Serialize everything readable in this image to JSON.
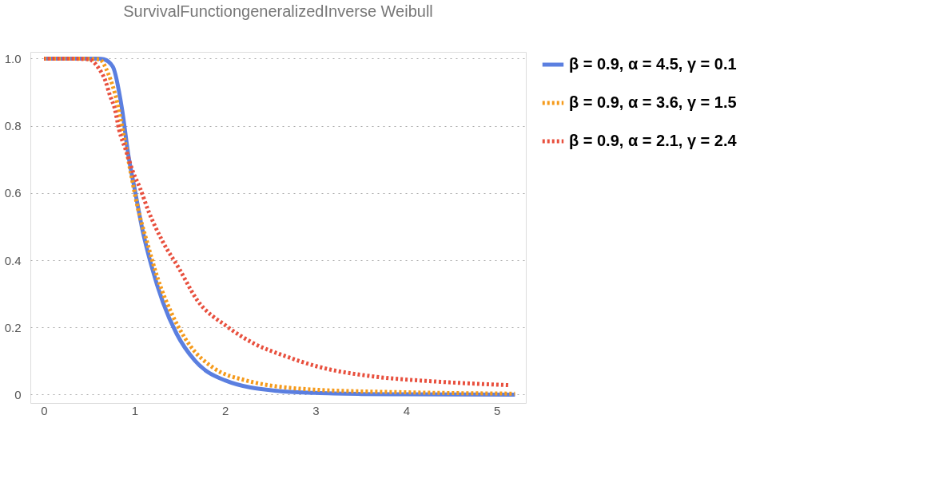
{
  "chart_data": {
    "type": "line",
    "title": "SurvivalFunctiongeneralizedInverse Weibull",
    "xlim": [
      -0.15,
      5.32
    ],
    "ylim": [
      -0.025,
      1.02
    ],
    "xticks": [
      0,
      1,
      2,
      3,
      4,
      5
    ],
    "yticks": [
      0,
      {
        "value": 0.2,
        "label": "0.2"
      },
      {
        "value": 0.4,
        "label": "0.4"
      },
      {
        "value": 0.6,
        "label": "0.6"
      },
      {
        "value": 0.8,
        "label": "0.8"
      },
      {
        "value": 1,
        "label": "1.0"
      }
    ],
    "grid": "y",
    "legend": "right",
    "series": [
      {
        "name": "β = 0.9,  α = 4.5,  γ = 0.1",
        "color": "#5b7fe0",
        "line_style": "solid",
        "x": [
          0,
          0.3,
          0.6,
          0.66,
          0.76,
          0.86,
          0.934,
          1.01,
          1.086,
          1.187,
          1.313,
          1.465,
          1.667,
          1.995,
          2.576,
          3.0,
          3.5,
          4.0,
          5.2
        ],
        "values": [
          1,
          1,
          1,
          0.998,
          0.976,
          0.853,
          0.709,
          0.6,
          0.492,
          0.383,
          0.275,
          0.181,
          0.101,
          0.043,
          0.011,
          0.005,
          0.002,
          0.001,
          0
        ]
      },
      {
        "name": "β = 0.9,  α = 3.6,  γ = 1.5",
        "color": "#f59a1b",
        "line_style": "dotted",
        "x": [
          0,
          0.3,
          0.61,
          0.71,
          0.81,
          0.884,
          0.96,
          1.035,
          1.136,
          1.263,
          1.414,
          1.616,
          1.869,
          2.22,
          2.98,
          3.99,
          5.2
        ],
        "values": [
          1,
          1,
          0.998,
          0.955,
          0.868,
          0.767,
          0.658,
          0.557,
          0.456,
          0.34,
          0.239,
          0.145,
          0.08,
          0.043,
          0.015,
          0.007,
          0.003
        ]
      },
      {
        "name": "β = 0.9,  α = 2.1,  γ = 2.4",
        "color": "#e8503e",
        "line_style": "dotted",
        "x": [
          0,
          0.25,
          0.49,
          0.61,
          0.68,
          0.73,
          0.78,
          0.83,
          0.91,
          0.98,
          1.06,
          1.16,
          1.31,
          1.49,
          1.69,
          2.02,
          2.32,
          2.65,
          3.03,
          3.64,
          4.27,
          5.15
        ],
        "values": [
          1,
          1,
          0.998,
          0.969,
          0.933,
          0.889,
          0.853,
          0.788,
          0.723,
          0.665,
          0.615,
          0.542,
          0.456,
          0.376,
          0.282,
          0.203,
          0.152,
          0.116,
          0.083,
          0.054,
          0.04,
          0.028
        ]
      }
    ]
  }
}
